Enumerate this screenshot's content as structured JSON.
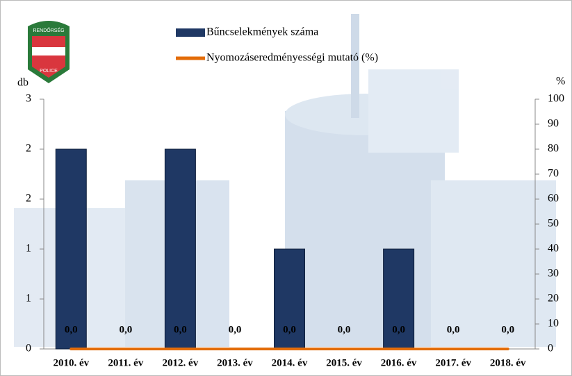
{
  "chart_data": {
    "type": "bar",
    "categories": [
      "2010. év",
      "2011. év",
      "2012. év",
      "2013. év",
      "2014. év",
      "2015. év",
      "2016. év",
      "2017. év",
      "2018. év"
    ],
    "series": [
      {
        "name": "Bűncselekmények száma",
        "color": "#1f3864",
        "values": [
          2,
          0,
          2,
          0,
          1,
          0,
          1,
          0,
          0
        ]
      },
      {
        "name": "Nyomozáseredményességi mutató (%)",
        "color": "#e36c09",
        "type": "line",
        "axis": "y2",
        "values": [
          0,
          0,
          0,
          0,
          0,
          0,
          0,
          0,
          0
        ],
        "value_labels": [
          "0,0",
          "0,0",
          "0,0",
          "0,0",
          "0,0",
          "0,0",
          "0,0",
          "0,0",
          "0,0"
        ]
      }
    ],
    "y_label": "db",
    "y2_label": "%",
    "ylim": [
      0,
      2.5
    ],
    "yticks": [
      0,
      {
        "value": 0.5,
        "label": "1"
      },
      1,
      {
        "value": 1.5,
        "label": "2"
      },
      2,
      {
        "value": 2.5,
        "label": "3"
      }
    ],
    "y2lim": [
      0,
      100
    ],
    "y2ticks": [
      0,
      10,
      20,
      30,
      40,
      50,
      60,
      70,
      80,
      90,
      100
    ],
    "logo": {
      "top": "RENDŐRSÉG",
      "bottom": "POLICE"
    }
  }
}
